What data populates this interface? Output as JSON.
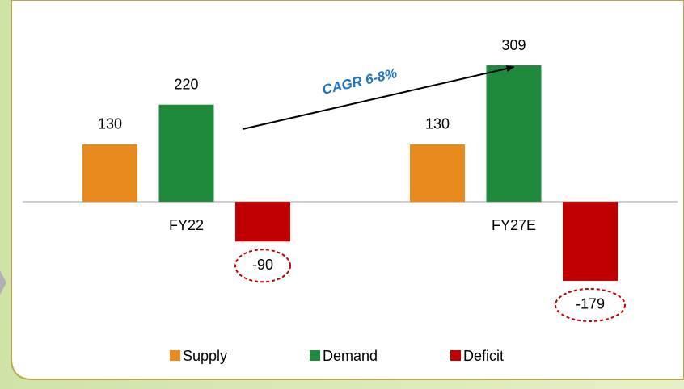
{
  "chart_data": {
    "type": "bar",
    "categories": [
      "FY22",
      "FY27E"
    ],
    "series": [
      {
        "name": "Supply",
        "color": "#e88a1e",
        "values": [
          130,
          130
        ]
      },
      {
        "name": "Demand",
        "color": "#1f8a3c",
        "values": [
          220,
          309
        ]
      },
      {
        "name": "Deficit",
        "color": "#c00000",
        "values": [
          -90,
          -179
        ]
      }
    ],
    "ylim": [
      -250,
      350
    ],
    "annotation": "CAGR 6-8%",
    "legend": "bottom"
  }
}
